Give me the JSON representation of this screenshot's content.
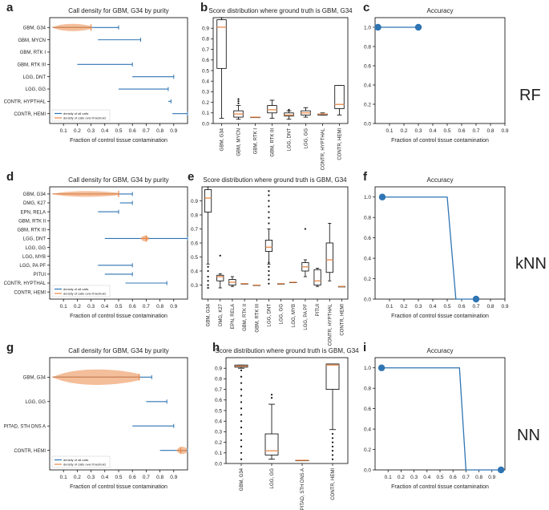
{
  "figure": {
    "rows": [
      {
        "method": "RF"
      },
      {
        "method": "kNN"
      },
      {
        "method": "NN"
      }
    ]
  },
  "chart_data": [
    {
      "id": "a",
      "panel_letter": "a",
      "type": "violin-range",
      "title": "Call density for GBM, G34 by purity",
      "xlabel": "Fraction of control tissue contamination",
      "ylabel": "",
      "xlim": [
        0.0,
        1.0
      ],
      "xticks": [
        "0.1",
        "0.2",
        "0.3",
        "0.4",
        "0.5",
        "0.6",
        "0.7",
        "0.8",
        "0.9"
      ],
      "categories": [
        "GBM, G34",
        "GBM, MYCN",
        "GBM, RTK I",
        "GBM, RTK III",
        "LGG, DNT",
        "LGG, GG",
        "CONTR, HYPTHAL",
        "CONTR, HEMI"
      ],
      "ranges": [
        {
          "all": [
            0.02,
            0.5
          ],
          "thr": [
            0.02,
            0.3
          ],
          "mid": 0.3
        },
        {
          "all": [
            0.35,
            0.66
          ],
          "thr": null,
          "mid": null
        },
        {
          "all": null,
          "thr": null,
          "mid": null
        },
        {
          "all": [
            0.2,
            0.6
          ],
          "thr": null,
          "mid": null
        },
        {
          "all": [
            0.6,
            0.9
          ],
          "thr": null,
          "mid": null
        },
        {
          "all": [
            0.5,
            0.86
          ],
          "thr": null,
          "mid": null
        },
        {
          "all": [
            0.86,
            0.88
          ],
          "thr": null,
          "mid": null
        },
        {
          "all": [
            0.89,
            1.0
          ],
          "thr": null,
          "mid": null
        }
      ],
      "legend": [
        "density of all calls",
        "density of calls over threshold"
      ],
      "legend_position": "lower-left"
    },
    {
      "id": "b",
      "panel_letter": "b",
      "type": "box",
      "title": "Score distribution where ground truth is GBM, G34",
      "ylim": [
        0.0,
        1.0
      ],
      "yticks": [
        "0.0",
        "0.1",
        "0.2",
        "0.3",
        "0.4",
        "0.5",
        "0.6",
        "0.7",
        "0.8",
        "0.9"
      ],
      "categories": [
        "GBM, G34",
        "GBM, MYCN",
        "GBM, RTK I",
        "GBM, RTK III",
        "LGG, DNT",
        "LGG, GG",
        "CONTR, HYPTHAL",
        "CONTR, HEMI"
      ],
      "boxes": [
        {
          "whislo": 0.05,
          "q1": 0.52,
          "med": 0.91,
          "q3": 0.98,
          "whishi": 1.0,
          "fliers": []
        },
        {
          "whislo": 0.04,
          "q1": 0.06,
          "med": 0.09,
          "q3": 0.12,
          "whishi": 0.17,
          "fliers": [
            0.19,
            0.21,
            0.23
          ]
        },
        {
          "whislo": 0.06,
          "q1": 0.06,
          "med": 0.06,
          "q3": 0.06,
          "whishi": 0.06,
          "fliers": []
        },
        {
          "whislo": 0.05,
          "q1": 0.1,
          "med": 0.13,
          "q3": 0.17,
          "whishi": 0.22,
          "fliers": []
        },
        {
          "whislo": 0.04,
          "q1": 0.07,
          "med": 0.08,
          "q3": 0.1,
          "whishi": 0.12,
          "fliers": [
            0.13
          ]
        },
        {
          "whislo": 0.06,
          "q1": 0.08,
          "med": 0.1,
          "q3": 0.12,
          "whishi": 0.15,
          "fliers": []
        },
        {
          "whislo": 0.08,
          "q1": 0.08,
          "med": 0.09,
          "q3": 0.09,
          "whishi": 0.1,
          "fliers": []
        },
        {
          "whislo": 0.08,
          "q1": 0.14,
          "med": 0.18,
          "q3": 0.36,
          "whishi": 0.36,
          "fliers": []
        }
      ]
    },
    {
      "id": "c",
      "panel_letter": "c",
      "type": "line",
      "title": "Accuracy",
      "xlabel": "Fraction of control tissue contamination",
      "xlim": [
        0.0,
        0.9
      ],
      "ylim": [
        0.0,
        1.1
      ],
      "xticks": [
        "0.1",
        "0.2",
        "0.3",
        "0.4",
        "0.5",
        "0.6",
        "0.7",
        "0.8",
        "0.9"
      ],
      "yticks": [
        "0.0",
        "0.2",
        "0.4",
        "0.6",
        "0.8",
        "1.0"
      ],
      "x": [
        0.02,
        0.3
      ],
      "y": [
        1.0,
        1.0
      ],
      "markers": [
        [
          0.02,
          1.0
        ],
        [
          0.3,
          1.0
        ]
      ]
    },
    {
      "id": "d",
      "panel_letter": "d",
      "type": "violin-range",
      "title": "Call density for GBM, G34 by purity",
      "xlabel": "Fraction of control tissue contamination",
      "xlim": [
        0.0,
        1.0
      ],
      "xticks": [
        "0.1",
        "0.2",
        "0.3",
        "0.4",
        "0.5",
        "0.6",
        "0.7",
        "0.8",
        "0.9"
      ],
      "categories": [
        "GBM, G34",
        "DMG, K27",
        "EPN, RELA",
        "GBM, RTK II",
        "GBM, RTK III",
        "LGG, DNT",
        "LGG, GG",
        "LGG, MYB",
        "LGG, PA PF",
        "PITUI",
        "CONTR, HYPTHAL",
        "CONTR, HEMI"
      ],
      "ranges": [
        {
          "all": [
            0.02,
            0.6
          ],
          "thr": [
            0.02,
            0.5
          ],
          "mid": 0.5
        },
        {
          "all": [
            0.51,
            0.6
          ],
          "thr": null,
          "mid": null
        },
        {
          "all": [
            0.35,
            0.5
          ],
          "thr": null,
          "mid": null
        },
        {
          "all": null,
          "thr": null,
          "mid": null
        },
        {
          "all": null,
          "thr": null,
          "mid": null
        },
        {
          "all": [
            0.4,
            1.0
          ],
          "thr": [
            0.66,
            0.72
          ],
          "mid": 0.7
        },
        {
          "all": null,
          "thr": null,
          "mid": null
        },
        {
          "all": null,
          "thr": null,
          "mid": null
        },
        {
          "all": [
            0.35,
            0.6
          ],
          "thr": null,
          "mid": null
        },
        {
          "all": [
            0.4,
            0.6
          ],
          "thr": null,
          "mid": null
        },
        {
          "all": [
            0.55,
            0.85
          ],
          "thr": null,
          "mid": null
        },
        {
          "all": null,
          "thr": null,
          "mid": null
        }
      ],
      "legend": [
        "density of all calls",
        "density of calls over threshold"
      ],
      "legend_position": "lower-left"
    },
    {
      "id": "e",
      "panel_letter": "e",
      "type": "box",
      "title": "Score distribution where ground truth is GBM, G34",
      "ylim": [
        0.2,
        1.0
      ],
      "yticks": [
        "0.3",
        "0.4",
        "0.5",
        "0.6",
        "0.7",
        "0.8",
        "0.9"
      ],
      "categories": [
        "GBM, G34",
        "DMG, K27",
        "EPN, RELA",
        "GBM, RTK II",
        "GBM, RTK III",
        "LGG, DNT",
        "LGG, GG",
        "LGG, MYB",
        "LGG, PA PF",
        "PITUI",
        "CONTR, HYPTHAL",
        "CONTR, HEMI"
      ],
      "boxes": [
        {
          "whislo": 0.45,
          "q1": 0.82,
          "med": 0.92,
          "q3": 0.98,
          "whishi": 1.0,
          "fliers": [
            0.28,
            0.3,
            0.33,
            0.36,
            0.4,
            0.43
          ]
        },
        {
          "whislo": 0.28,
          "q1": 0.33,
          "med": 0.36,
          "q3": 0.37,
          "whishi": 0.38,
          "fliers": [
            0.51
          ]
        },
        {
          "whislo": 0.29,
          "q1": 0.3,
          "med": 0.32,
          "q3": 0.34,
          "whishi": 0.36,
          "fliers": []
        },
        {
          "whislo": 0.31,
          "q1": 0.31,
          "med": 0.31,
          "q3": 0.31,
          "whishi": 0.31,
          "fliers": []
        },
        {
          "whislo": 0.3,
          "q1": 0.3,
          "med": 0.3,
          "q3": 0.3,
          "whishi": 0.3,
          "fliers": []
        },
        {
          "whislo": 0.45,
          "q1": 0.54,
          "med": 0.57,
          "q3": 0.62,
          "whishi": 0.7,
          "fliers": [
            0.31,
            0.34,
            0.37,
            0.4,
            0.43,
            0.46,
            0.74,
            0.78,
            0.82,
            0.86,
            0.9,
            0.94,
            0.97
          ]
        },
        {
          "whislo": 0.31,
          "q1": 0.31,
          "med": 0.31,
          "q3": 0.31,
          "whishi": 0.31,
          "fliers": []
        },
        {
          "whislo": 0.32,
          "q1": 0.32,
          "med": 0.32,
          "q3": 0.32,
          "whishi": 0.32,
          "fliers": []
        },
        {
          "whislo": 0.36,
          "q1": 0.4,
          "med": 0.43,
          "q3": 0.46,
          "whishi": 0.48,
          "fliers": [
            0.7
          ]
        },
        {
          "whislo": 0.29,
          "q1": 0.3,
          "med": 0.33,
          "q3": 0.41,
          "whishi": 0.42,
          "fliers": []
        },
        {
          "whislo": 0.33,
          "q1": 0.39,
          "med": 0.48,
          "q3": 0.6,
          "whishi": 0.74,
          "fliers": []
        },
        {
          "whislo": 0.29,
          "q1": 0.29,
          "med": 0.29,
          "q3": 0.29,
          "whishi": 0.29,
          "fliers": []
        }
      ]
    },
    {
      "id": "f",
      "panel_letter": "f",
      "type": "line",
      "title": "Accuracy",
      "xlabel": "Fraction of control tissue contamination",
      "xlim": [
        0.0,
        0.9
      ],
      "ylim": [
        0.0,
        1.1
      ],
      "xticks": [
        "0.1",
        "0.2",
        "0.3",
        "0.4",
        "0.5",
        "0.6",
        "0.7",
        "0.8",
        "0.9"
      ],
      "yticks": [
        "0.0",
        "0.2",
        "0.4",
        "0.6",
        "0.8",
        "1.0"
      ],
      "x": [
        0.05,
        0.5,
        0.56,
        0.7
      ],
      "y": [
        1.0,
        1.0,
        0.0,
        0.0
      ],
      "markers": [
        [
          0.05,
          1.0
        ],
        [
          0.7,
          0.0
        ]
      ]
    },
    {
      "id": "g",
      "panel_letter": "g",
      "type": "violin-range",
      "title": "Call density for GBM, G34 by purity",
      "xlabel": "Fraction of control tissue contamination",
      "xlim": [
        0.0,
        1.0
      ],
      "xticks": [
        "0.1",
        "0.2",
        "0.3",
        "0.4",
        "0.5",
        "0.6",
        "0.7",
        "0.8",
        "0.9"
      ],
      "categories": [
        "GBM, G34",
        "LGG, GG",
        "PITAD, STH DNS A",
        "CONTR, HEMI"
      ],
      "ranges": [
        {
          "all": [
            0.02,
            0.74
          ],
          "thr": [
            0.02,
            0.65
          ],
          "mid": 0.65
        },
        {
          "all": [
            0.7,
            0.85
          ],
          "thr": null,
          "mid": null
        },
        {
          "all": [
            0.6,
            0.9
          ],
          "thr": null,
          "mid": null
        },
        {
          "all": [
            0.8,
            1.0
          ],
          "thr": [
            0.92,
            1.0
          ],
          "mid": 0.95
        }
      ],
      "legend": [
        "density of all calls",
        "density of calls over threshold"
      ],
      "legend_position": "lower-left"
    },
    {
      "id": "h",
      "panel_letter": "h",
      "type": "box",
      "title": "Score distribution where ground truth is GBM, G34",
      "ylim": [
        0.0,
        1.0
      ],
      "yticks": [
        "0.0",
        "0.1",
        "0.2",
        "0.3",
        "0.4",
        "0.5",
        "0.6",
        "0.7",
        "0.8",
        "0.9"
      ],
      "categories": [
        "GBM, G34",
        "LGG, GG",
        "PITAD, STH DNS A",
        "CONTR, HEMI"
      ],
      "boxes": [
        {
          "whislo": 0.9,
          "q1": 0.91,
          "med": 0.92,
          "q3": 0.93,
          "whishi": 0.93,
          "fliers": [
            0.04,
            0.1,
            0.16,
            0.22,
            0.28,
            0.34,
            0.4,
            0.46,
            0.52,
            0.58,
            0.64,
            0.7,
            0.76,
            0.82,
            0.88
          ]
        },
        {
          "whislo": 0.04,
          "q1": 0.08,
          "med": 0.12,
          "q3": 0.28,
          "whishi": 0.56,
          "fliers": [
            0.62,
            0.65
          ]
        },
        {
          "whislo": 0.03,
          "q1": 0.03,
          "med": 0.03,
          "q3": 0.03,
          "whishi": 0.03,
          "fliers": []
        },
        {
          "whislo": 0.32,
          "q1": 0.7,
          "med": 0.93,
          "q3": 0.94,
          "whishi": 0.94,
          "fliers": [
            0.04,
            0.08,
            0.12,
            0.16,
            0.2,
            0.24,
            0.28
          ]
        }
      ]
    },
    {
      "id": "i",
      "panel_letter": "i",
      "type": "line",
      "title": "Accuracy",
      "xlabel": "Fraction of control tissue contamination",
      "xlim": [
        0.0,
        1.0
      ],
      "ylim": [
        0.0,
        1.1
      ],
      "xticks": [
        "0.1",
        "0.2",
        "0.3",
        "0.4",
        "0.5",
        "0.6",
        "0.7",
        "0.8",
        "0.9"
      ],
      "yticks": [
        "0.0",
        "0.2",
        "0.4",
        "0.6",
        "0.8",
        "1.0"
      ],
      "x": [
        0.05,
        0.65,
        0.7,
        0.97
      ],
      "y": [
        1.0,
        1.0,
        0.0,
        0.0
      ],
      "markers": [
        [
          0.05,
          1.0
        ],
        [
          0.97,
          0.0
        ]
      ]
    }
  ],
  "colors": {
    "blue": "#2f75b3",
    "orange": "#e8894a",
    "orange_fill": "#f0a878",
    "blue_fill": "#a8c4dc",
    "axis": "#000000",
    "text": "#222222"
  }
}
